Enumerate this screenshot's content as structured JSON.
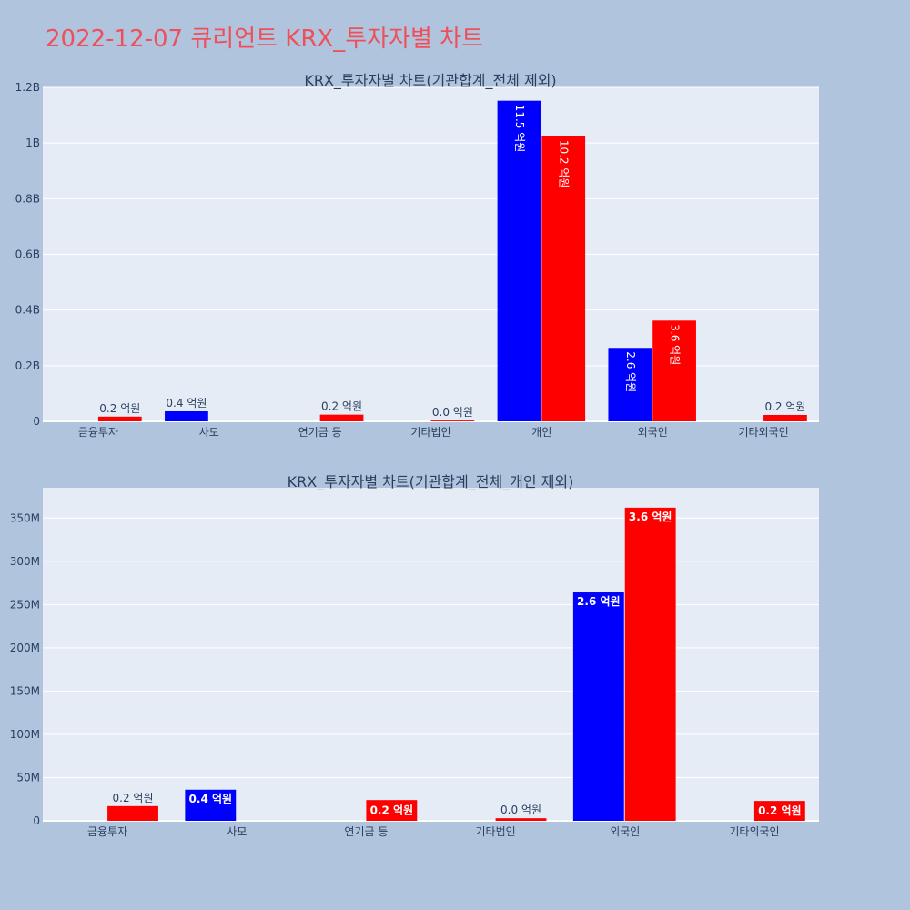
{
  "page_title": "2022-12-07 큐리언트 KRX_투자자별 차트",
  "colors": {
    "buy": "#0000ff",
    "sell": "#ff0000",
    "background": "#b0c4de",
    "plot_bg": "#e5ecf6",
    "title": "#ef4f5a",
    "axis_text": "#2a3f5f"
  },
  "chart_data": [
    {
      "type": "bar",
      "title": "KRX_투자자별 차트(기관합계_전체 제외)",
      "categories": [
        "금융투자",
        "사모",
        "연기금 등",
        "기타법인",
        "개인",
        "외국인",
        "기타외국인"
      ],
      "ylim": [
        0,
        1.2
      ],
      "yunit": "B",
      "yticks": [
        {
          "value": 0,
          "label": "0"
        },
        {
          "value": 0.2,
          "label": "0.2B"
        },
        {
          "value": 0.4,
          "label": "0.4B"
        },
        {
          "value": 0.6,
          "label": "0.6B"
        },
        {
          "value": 0.8,
          "label": "0.8B"
        },
        {
          "value": 1.0,
          "label": "1B"
        },
        {
          "value": 1.2,
          "label": "1.2B"
        }
      ],
      "series": [
        {
          "color": "#0000ff",
          "values": [
            0,
            0.036,
            0,
            0,
            1.152,
            0.264,
            0
          ],
          "labels": [
            "",
            "0.4 억원",
            "",
            "",
            "11.5 억원",
            "2.6 억원",
            ""
          ]
        },
        {
          "color": "#ff0000",
          "values": [
            0.017,
            0,
            0.024,
            0.003,
            1.024,
            0.362,
            0.023
          ],
          "labels": [
            "0.2 억원",
            "",
            "0.2 억원",
            "0.0 억원",
            "10.2 억원",
            "3.6 억원",
            "0.2 억원"
          ]
        }
      ],
      "grid": true
    },
    {
      "type": "bar",
      "title": "KRX_투자자별 차트(기관합계_전체_개인 제외)",
      "categories": [
        "금융투자",
        "사모",
        "연기금 등",
        "기타법인",
        "외국인",
        "기타외국인"
      ],
      "ylim": [
        0,
        385
      ],
      "yunit": "M",
      "yticks": [
        {
          "value": 0,
          "label": "0"
        },
        {
          "value": 50,
          "label": "50M"
        },
        {
          "value": 100,
          "label": "100M"
        },
        {
          "value": 150,
          "label": "150M"
        },
        {
          "value": 200,
          "label": "200M"
        },
        {
          "value": 250,
          "label": "250M"
        },
        {
          "value": 300,
          "label": "300M"
        },
        {
          "value": 350,
          "label": "350M"
        }
      ],
      "series": [
        {
          "color": "#0000ff",
          "values": [
            0,
            36,
            0,
            0,
            264,
            0
          ],
          "labels": [
            "",
            "0.4 억원",
            "",
            "",
            "2.6 억원",
            ""
          ]
        },
        {
          "color": "#ff0000",
          "values": [
            17,
            0,
            24,
            3,
            362,
            23
          ],
          "labels": [
            "0.2 억원",
            "",
            "0.2 억원",
            "0.0 억원",
            "3.6 억원",
            "0.2 억원"
          ]
        }
      ],
      "grid": true
    }
  ]
}
